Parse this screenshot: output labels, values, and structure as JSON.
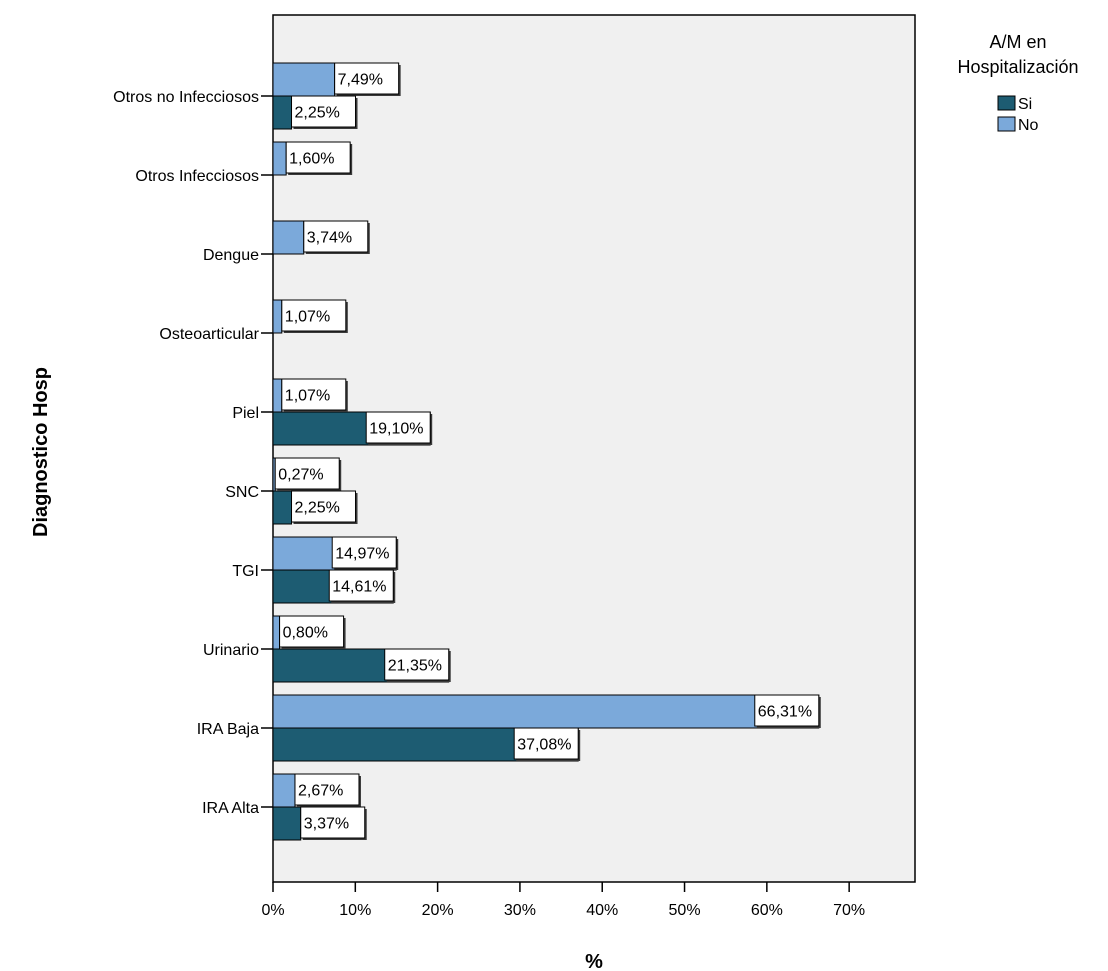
{
  "chart_data": {
    "type": "bar",
    "orientation": "horizontal",
    "categories": [
      "Otros no Infecciosos",
      "Otros Infecciosos",
      "Dengue",
      "Osteoarticular",
      "Piel",
      "SNC",
      "TGI",
      "Urinario",
      "IRA Baja",
      "IRA Alta"
    ],
    "series": [
      {
        "name": "Si",
        "color": "#1d5c72",
        "values": [
          2.25,
          null,
          null,
          null,
          19.1,
          2.25,
          14.61,
          21.35,
          37.08,
          3.37
        ],
        "labels": [
          "2,25%",
          "",
          "",
          "",
          "19,10%",
          "2,25%",
          "14,61%",
          "21,35%",
          "37,08%",
          "3,37%"
        ]
      },
      {
        "name": "No",
        "color": "#7ba9da",
        "values": [
          7.49,
          1.6,
          3.74,
          1.07,
          1.07,
          0.27,
          14.97,
          0.8,
          66.31,
          2.67
        ],
        "labels": [
          "7,49%",
          "1,60%",
          "3,74%",
          "1,07%",
          "1,07%",
          "0,27%",
          "14,97%",
          "0,80%",
          "66,31%",
          "2,67%"
        ]
      }
    ],
    "xlabel": "%",
    "ylabel": "Diagnostico Hosp",
    "xlim": [
      0,
      78
    ],
    "xticks": [
      0,
      10,
      20,
      30,
      40,
      50,
      60,
      70
    ],
    "xtick_labels": [
      "0%",
      "10%",
      "20%",
      "30%",
      "40%",
      "50%",
      "60%",
      "70%"
    ],
    "legend": {
      "title_line1": "A/M en",
      "title_line2": "Hospitalización",
      "position": "top-right"
    },
    "plot_background": "#f0f0f0",
    "grid": false
  }
}
